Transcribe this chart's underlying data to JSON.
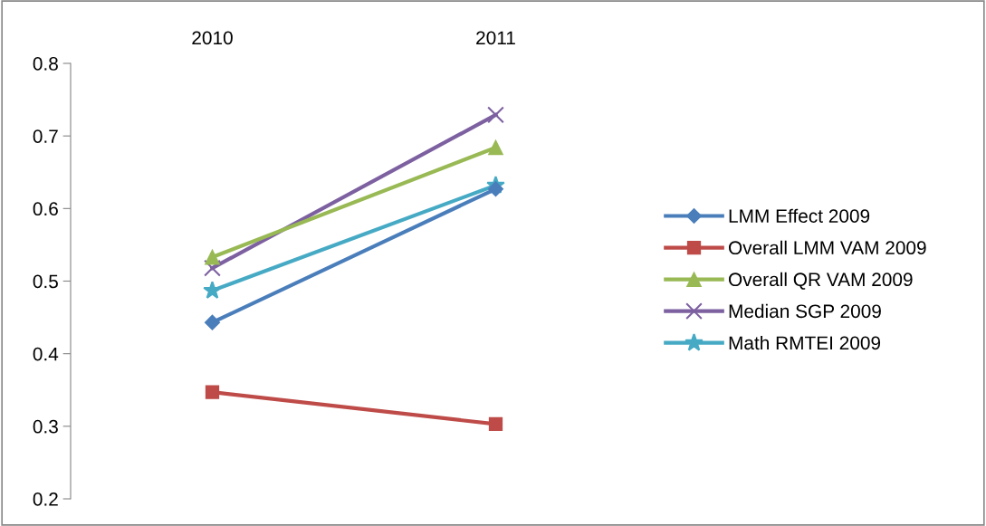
{
  "chart_data": {
    "type": "line",
    "categories": [
      "2010",
      "2011"
    ],
    "series": [
      {
        "name": "LMM Effect 2009",
        "color": "#4a7ebb",
        "marker": "diamond",
        "values": [
          0.443,
          0.627
        ]
      },
      {
        "name": "Overall LMM VAM 2009",
        "color": "#be4b48",
        "marker": "square",
        "values": [
          0.347,
          0.303
        ]
      },
      {
        "name": "Overall QR VAM 2009",
        "color": "#98b954",
        "marker": "triangle",
        "values": [
          0.533,
          0.684
        ]
      },
      {
        "name": "Median SGP 2009",
        "color": "#7d60a0",
        "marker": "cross",
        "values": [
          0.518,
          0.729
        ]
      },
      {
        "name": "Math RMTEI 2009",
        "color": "#46aac5",
        "marker": "star",
        "values": [
          0.487,
          0.632
        ]
      }
    ],
    "ylim": [
      0.2,
      0.8
    ],
    "yticks": [
      {
        "value": 0.2,
        "label": "0.2"
      },
      {
        "value": 0.3,
        "label": "0.3"
      },
      {
        "value": 0.4,
        "label": "0.4"
      },
      {
        "value": 0.5,
        "label": "0.5"
      },
      {
        "value": 0.6,
        "label": "0.6"
      },
      {
        "value": 0.7,
        "label": "0.7"
      },
      {
        "value": 0.8,
        "label": "0.8"
      }
    ],
    "grid": false,
    "legend": "right",
    "line_style": "solid"
  }
}
